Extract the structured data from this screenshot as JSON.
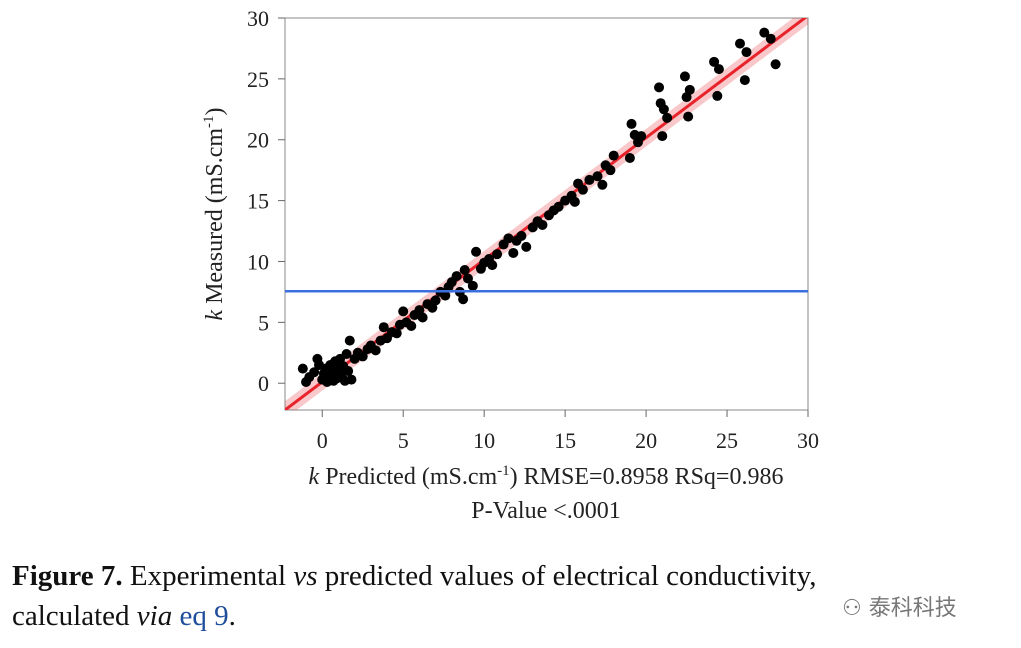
{
  "chart_data": {
    "type": "scatter",
    "y_label_parts": [
      "k",
      " Measured (mS.cm",
      "-1",
      ")"
    ],
    "x_label_parts": [
      "k",
      " Predicted (mS.cm",
      "-1",
      ")"
    ],
    "stats": "RMSE=0.8958 RSq=0.986",
    "p_value": "P-Value <.0001",
    "xlim": [
      -2.3,
      30
    ],
    "ylim": [
      -2.2,
      30
    ],
    "xticks": [
      0,
      5,
      10,
      15,
      20,
      25,
      30
    ],
    "yticks": [
      0,
      5,
      10,
      15,
      20,
      25,
      30
    ],
    "point_color": "#000000",
    "mean_line": {
      "value": 7.55,
      "color": "#3b6fe0"
    },
    "fit_line": {
      "x": [
        -2.3,
        30
      ],
      "y": [
        -2.2,
        30.2
      ],
      "color": "#e8232b"
    },
    "x": [
      -1.2,
      -1,
      -0.8,
      -0.5,
      -0.3,
      -0.2,
      0,
      0.1,
      0.2,
      0.3,
      0.4,
      0.5,
      0.6,
      0.7,
      0.8,
      0.9,
      1,
      1.1,
      1.2,
      1.3,
      1.4,
      1.5,
      1.6,
      1.7,
      1.8,
      2,
      2.2,
      2.5,
      2.8,
      3,
      3.3,
      3.6,
      3.8,
      4,
      4.3,
      4.6,
      4.8,
      5,
      5.2,
      5.5,
      5.7,
      6,
      6.2,
      6.5,
      6.8,
      7,
      7.3,
      7.6,
      7.8,
      8,
      8.3,
      8.5,
      8.7,
      8.8,
      9,
      9.3,
      9.5,
      9.8,
      10,
      10.3,
      10.5,
      10.8,
      11.2,
      11.5,
      11.8,
      12,
      12.3,
      12.6,
      13,
      13.3,
      13.6,
      14,
      14.3,
      14.6,
      15,
      15.4,
      15.6,
      15.8,
      16.1,
      16.5,
      17,
      17.3,
      17.5,
      17.8,
      18,
      19,
      19.1,
      19.3,
      19.5,
      19.7,
      20.8,
      20.9,
      21,
      21.1,
      21.3,
      22.4,
      22.5,
      22.6,
      22.7,
      24.2,
      24.4,
      24.5,
      25.8,
      26.1,
      26.2,
      27.3,
      27.7,
      28
    ],
    "y": [
      1.2,
      0.1,
      0.5,
      0.9,
      2,
      1.5,
      0.3,
      0.8,
      1.2,
      0.1,
      0.5,
      1.5,
      0.9,
      0.2,
      1.8,
      0.4,
      1.1,
      2,
      0.7,
      1.4,
      0.2,
      2.4,
      1,
      3.5,
      0.3,
      2,
      2.5,
      2.2,
      2.8,
      3.1,
      2.7,
      3.5,
      4.6,
      3.7,
      4.2,
      4.1,
      4.8,
      5.9,
      5,
      4.7,
      5.6,
      6,
      5.4,
      6.5,
      6.2,
      6.8,
      7.5,
      7.2,
      7.9,
      8.3,
      8.8,
      7.5,
      6.9,
      9.3,
      8.6,
      8,
      10.8,
      9.4,
      9.9,
      10.2,
      9.7,
      10.6,
      11.4,
      11.9,
      10.7,
      11.7,
      12.1,
      11.2,
      12.8,
      13.3,
      13,
      13.8,
      14.2,
      14.5,
      15,
      15.4,
      14.9,
      16.4,
      15.9,
      16.7,
      17,
      16.3,
      17.9,
      17.5,
      18.7,
      18.5,
      21.3,
      20.4,
      19.8,
      20.3,
      24.3,
      23,
      20.3,
      22.5,
      21.8,
      25.2,
      23.5,
      21.9,
      24.1,
      26.4,
      23.6,
      25.8,
      27.9,
      24.9,
      27.2,
      28.8,
      28.3,
      26.2
    ]
  },
  "caption": {
    "label": "Figure 7.",
    "t1": " Experimental ",
    "vs": "vs",
    "t2": " predicted values of electrical conductivity,",
    "t3": "calculated ",
    "via": "via",
    "ref": "eq 9",
    "end": "."
  },
  "watermark": "泰科科技"
}
